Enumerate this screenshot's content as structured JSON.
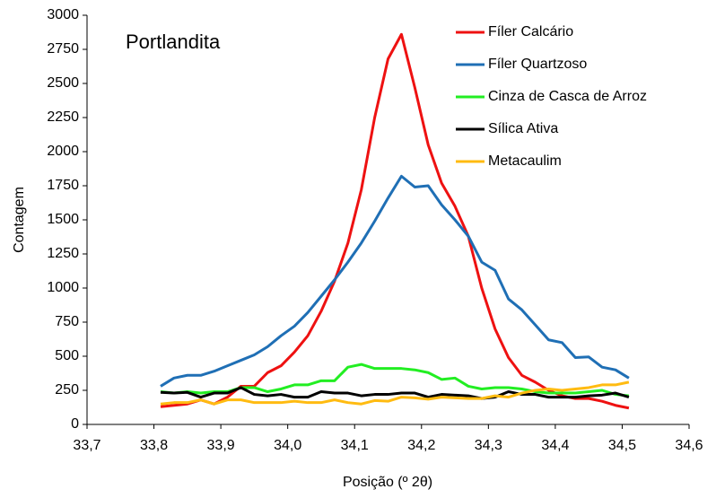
{
  "chart_data": {
    "type": "line",
    "title": "Portlandita",
    "xlabel": "Posição (º 2θ)",
    "ylabel": "Contagem",
    "x": [
      33.81,
      33.83,
      33.85,
      33.87,
      33.89,
      33.91,
      33.93,
      33.95,
      33.97,
      33.99,
      34.01,
      34.03,
      34.05,
      34.07,
      34.09,
      34.11,
      34.13,
      34.15,
      34.17,
      34.19,
      34.21,
      34.23,
      34.25,
      34.27,
      34.29,
      34.31,
      34.33,
      34.35,
      34.37,
      34.39,
      34.41,
      34.43,
      34.45,
      34.47,
      34.49,
      34.51
    ],
    "series": [
      {
        "name": "Fíler Calcário",
        "color": "#ee1111",
        "values": [
          130,
          140,
          150,
          180,
          150,
          200,
          280,
          280,
          380,
          430,
          530,
          650,
          830,
          1050,
          1330,
          1720,
          2250,
          2680,
          2860,
          2470,
          2050,
          1770,
          1600,
          1380,
          1000,
          700,
          490,
          360,
          310,
          250,
          210,
          190,
          190,
          170,
          140,
          120
        ]
      },
      {
        "name": "Fíler Quartzoso",
        "color": "#1f6fb5",
        "values": [
          280,
          340,
          360,
          360,
          390,
          430,
          470,
          510,
          570,
          650,
          720,
          820,
          940,
          1060,
          1190,
          1330,
          1490,
          1660,
          1820,
          1740,
          1750,
          1610,
          1500,
          1380,
          1190,
          1130,
          920,
          840,
          730,
          620,
          600,
          490,
          495,
          420,
          400,
          340
        ]
      },
      {
        "name": "Cinza de Casca de Arroz",
        "color": "#22ee22",
        "values": [
          240,
          230,
          240,
          230,
          240,
          240,
          270,
          270,
          240,
          260,
          290,
          290,
          320,
          320,
          420,
          440,
          410,
          410,
          410,
          400,
          380,
          330,
          340,
          280,
          260,
          270,
          270,
          260,
          240,
          230,
          230,
          230,
          240,
          250,
          220,
          210
        ]
      },
      {
        "name": "Sílica Ativa",
        "color": "#000000",
        "values": [
          235,
          230,
          235,
          200,
          230,
          230,
          270,
          220,
          210,
          220,
          200,
          200,
          240,
          230,
          230,
          210,
          220,
          220,
          230,
          230,
          200,
          220,
          215,
          210,
          190,
          200,
          240,
          220,
          220,
          200,
          200,
          200,
          210,
          215,
          230,
          200
        ]
      },
      {
        "name": "Metacaulim",
        "color": "#ffbb11",
        "values": [
          150,
          160,
          160,
          180,
          150,
          180,
          180,
          160,
          160,
          160,
          170,
          160,
          160,
          180,
          160,
          150,
          175,
          170,
          200,
          195,
          185,
          200,
          195,
          190,
          190,
          210,
          200,
          230,
          250,
          260,
          250,
          260,
          270,
          290,
          290,
          310
        ]
      }
    ],
    "xlim": [
      33.7,
      34.6
    ],
    "xticks": [
      {
        "value": 33.7,
        "label": "33,7"
      },
      {
        "value": 33.8,
        "label": "33,8"
      },
      {
        "value": 33.9,
        "label": "33,9"
      },
      {
        "value": 34.0,
        "label": "34,0"
      },
      {
        "value": 34.1,
        "label": "34,1"
      },
      {
        "value": 34.2,
        "label": "34,2"
      },
      {
        "value": 34.3,
        "label": "34,3"
      },
      {
        "value": 34.4,
        "label": "34,4"
      },
      {
        "value": 34.5,
        "label": "34,5"
      },
      {
        "value": 34.6,
        "label": "34,6"
      }
    ],
    "ylim": [
      0,
      3000
    ],
    "yticks": [
      0,
      250,
      500,
      750,
      1000,
      1250,
      1500,
      1750,
      2000,
      2250,
      2500,
      2750,
      3000
    ],
    "grid": false,
    "legend": "upper right"
  }
}
